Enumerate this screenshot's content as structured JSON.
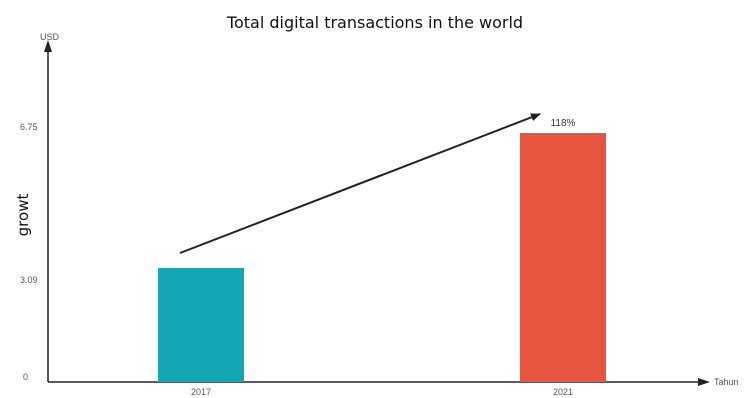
{
  "chart_data": {
    "type": "bar",
    "title": "Total digital transactions in the world",
    "ylabel": "growt",
    "y_unit": "USD",
    "xlabel": "Tahun",
    "categories": [
      "2017",
      "2021"
    ],
    "values": [
      3.09,
      6.75
    ],
    "bar_colors": [
      "#14a8b5",
      "#e8553e"
    ],
    "y_ticks": [
      "0",
      "3.09",
      "6.75"
    ],
    "ylim": [
      0,
      9
    ],
    "annotation": {
      "text": "118%",
      "from": "2017",
      "to": "2021",
      "shape": "arrow"
    },
    "grid": false,
    "legend": "none"
  }
}
